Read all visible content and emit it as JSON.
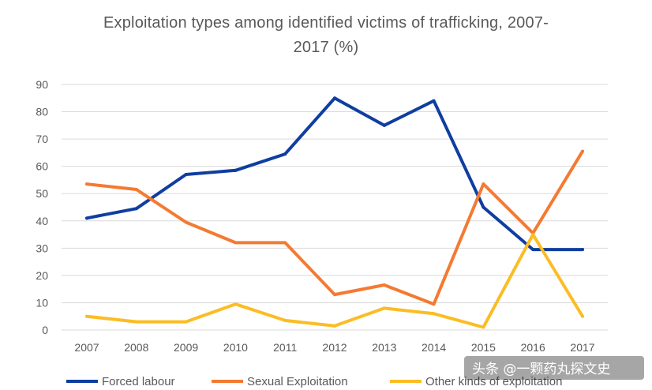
{
  "chart_data": {
    "type": "line",
    "title_line1": "Exploitation types among identified victims of trafficking, 2007-",
    "title_line2": "2017 (%)",
    "categories": [
      "2007",
      "2008",
      "2009",
      "2010",
      "2011",
      "2012",
      "2013",
      "2014",
      "2015",
      "2016",
      "2017"
    ],
    "ylim": [
      0,
      90
    ],
    "yticks": [
      0,
      10,
      20,
      30,
      40,
      50,
      60,
      70,
      80,
      90
    ],
    "grid": true,
    "legend_position": "bottom",
    "series": [
      {
        "name": "Forced labour",
        "color": "#0f3ea0",
        "values": [
          41,
          44.5,
          57,
          58.5,
          64.5,
          85,
          75,
          84,
          45,
          29.5,
          29.5
        ]
      },
      {
        "name": "Sexual Exploitation",
        "color": "#f47a32",
        "values": [
          53.5,
          51.5,
          39.5,
          32,
          32,
          13,
          16.5,
          9.5,
          53.5,
          35.5,
          65.5
        ]
      },
      {
        "name": "Other kinds of exploitation",
        "color": "#fbbd24",
        "values": [
          5,
          3,
          3,
          9.5,
          3.5,
          1.5,
          8,
          6,
          1,
          35,
          5
        ]
      }
    ]
  },
  "watermark": "头条 @一颗药丸探文史"
}
